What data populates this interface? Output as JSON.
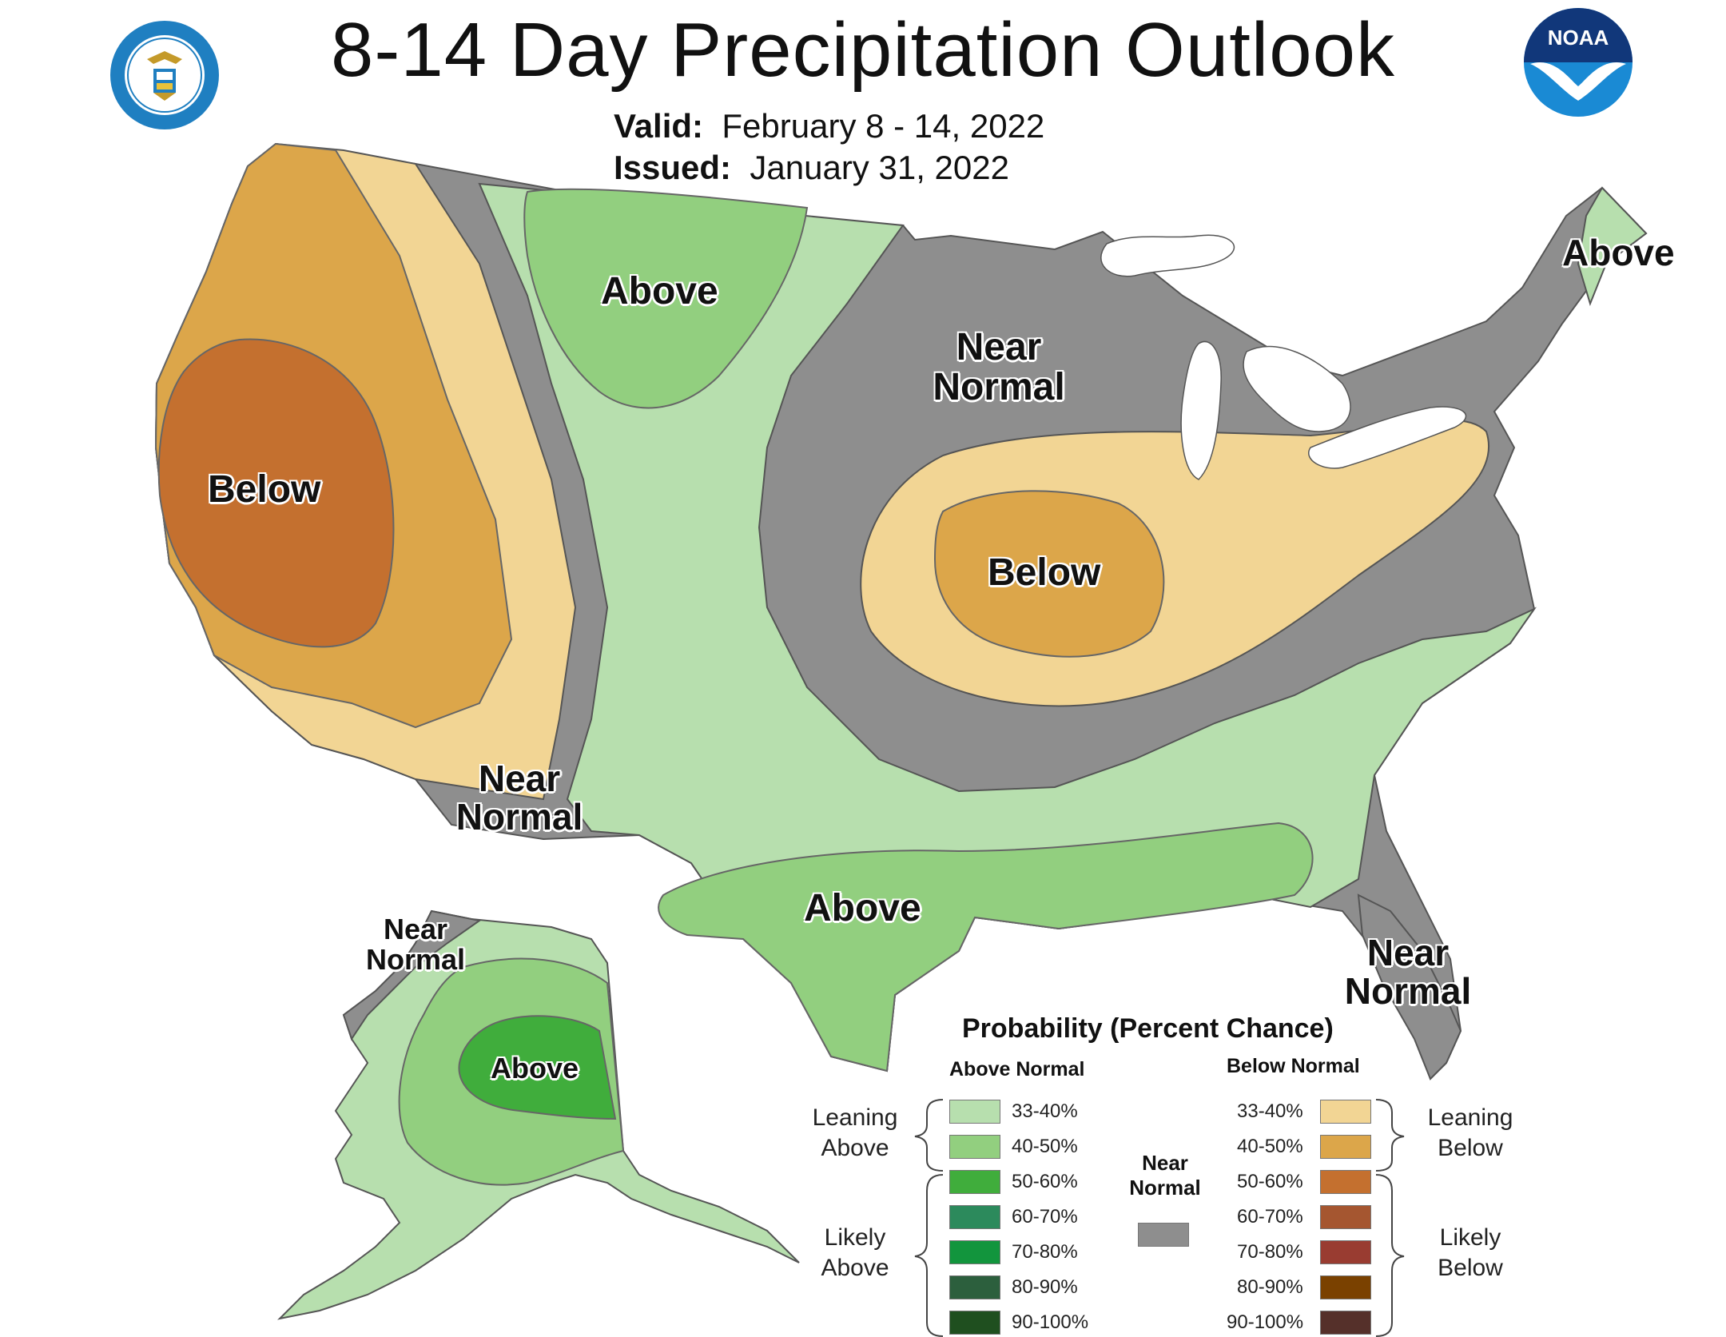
{
  "header": {
    "title": "8-14 Day Precipitation Outlook",
    "valid_label": "Valid:",
    "valid_value": "February 8 - 14, 2022",
    "issued_label": "Issued:",
    "issued_value": "January 31, 2022"
  },
  "logos": {
    "left": "department-of-commerce-seal",
    "right": "noaa-logo",
    "noaa_text": "NOAA"
  },
  "colors": {
    "above_33_40": "#b7dfae",
    "above_40_50": "#92cf7f",
    "above_50_60": "#40ad3c",
    "above_60_70": "#2c8a5c",
    "above_70_80": "#12953d",
    "above_80_90": "#2c5f3d",
    "above_90_100": "#1f4f1f",
    "near_normal": "#8e8e8e",
    "below_33_40": "#f2d594",
    "below_40_50": "#dca64a",
    "below_50_60": "#c4702f",
    "below_60_70": "#a55630",
    "below_70_80": "#993c31",
    "below_80_90": "#7a4100",
    "below_90_100": "#55302a"
  },
  "map_labels": {
    "west_below": "Below",
    "north_plains_above": "Above",
    "great_lakes_near_1": "Near",
    "great_lakes_near_2": "Normal",
    "midwest_below": "Below",
    "maine_above": "Above",
    "southwest_near_1": "Near",
    "southwest_near_2": "Normal",
    "texas_above": "Above",
    "florida_near_1": "Near",
    "florida_near_2": "Normal",
    "alaska_near_1": "Near",
    "alaska_near_2": "Normal",
    "alaska_above": "Above"
  },
  "legend": {
    "title": "Probability (Percent Chance)",
    "above_header": "Above Normal",
    "below_header": "Below Normal",
    "near_header_1": "Near",
    "near_header_2": "Normal",
    "leaning_above_1": "Leaning",
    "leaning_above_2": "Above",
    "likely_above_1": "Likely",
    "likely_above_2": "Above",
    "leaning_below_1": "Leaning",
    "leaning_below_2": "Below",
    "likely_below_1": "Likely",
    "likely_below_2": "Below",
    "ranges": [
      "33-40%",
      "40-50%",
      "50-60%",
      "60-70%",
      "70-80%",
      "80-90%",
      "90-100%"
    ]
  }
}
